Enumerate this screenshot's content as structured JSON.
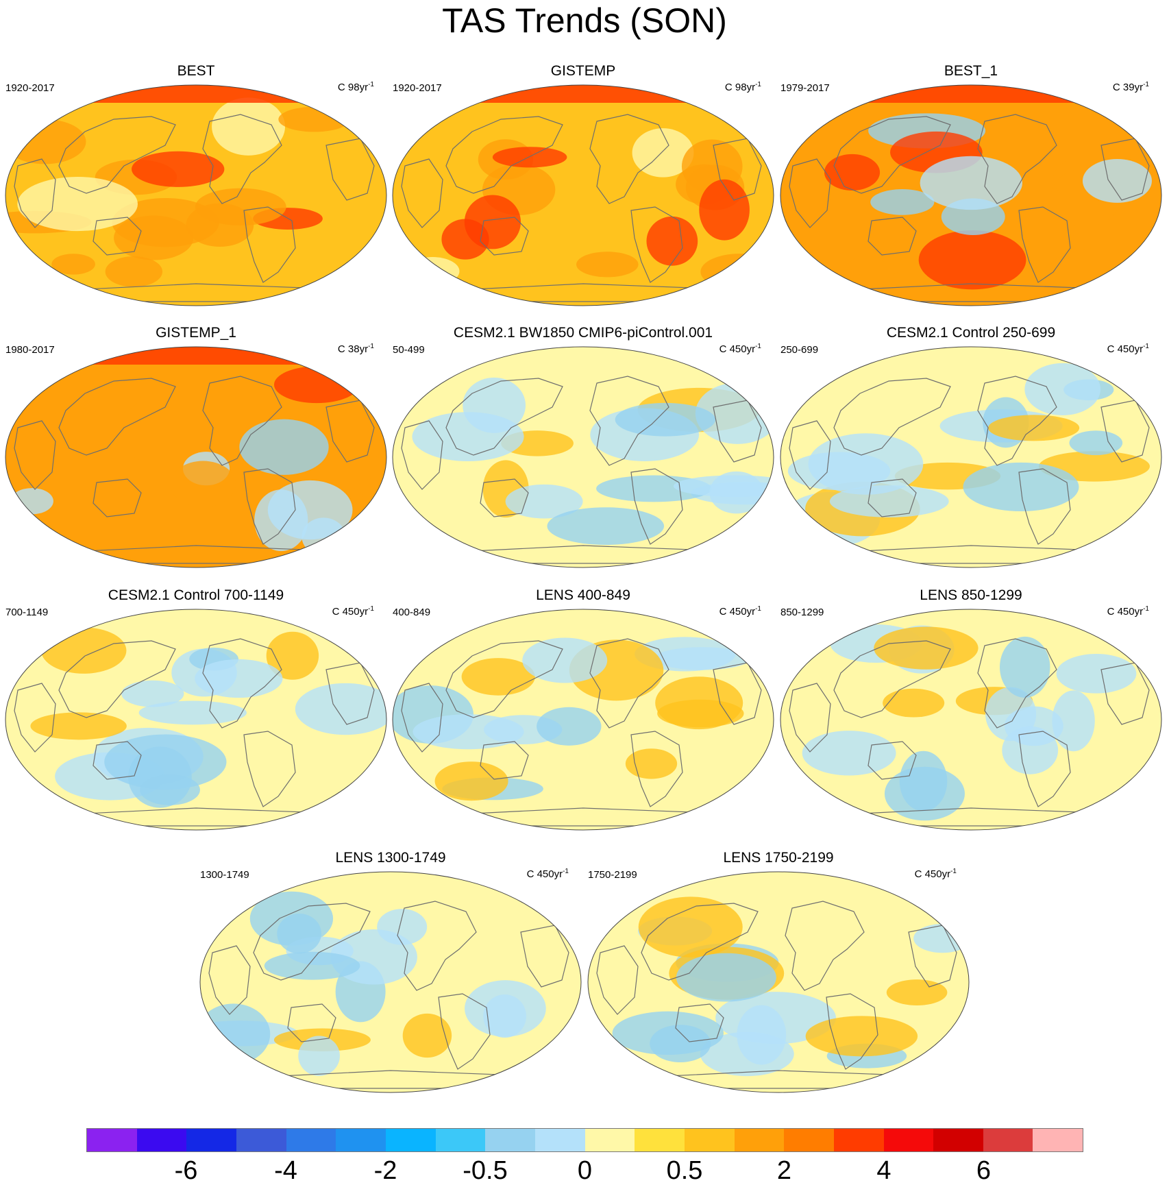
{
  "figure": {
    "title": "TAS Trends (SON)"
  },
  "panels": [
    {
      "name": "BEST",
      "period": "1920-2017",
      "units": "C 98yr",
      "units_sup": "-1",
      "pattern": "warm"
    },
    {
      "name": "GISTEMP",
      "period": "1920-2017",
      "units": "C 98yr",
      "units_sup": "-1",
      "pattern": "warm"
    },
    {
      "name": "BEST_1",
      "period": "1979-2017",
      "units": "C 39yr",
      "units_sup": "-1",
      "pattern": "strong-warm"
    },
    {
      "name": "GISTEMP_1",
      "period": "1980-2017",
      "units": "C 38yr",
      "units_sup": "-1",
      "pattern": "strong-warm"
    },
    {
      "name": "CESM2.1 BW1850 CMIP6-piControl.001",
      "period": "50-499",
      "units": "C 450yr",
      "units_sup": "-1",
      "pattern": "neutral"
    },
    {
      "name": "CESM2.1 Control 250-699",
      "period": "250-699",
      "units": "C 450yr",
      "units_sup": "-1",
      "pattern": "neutral"
    },
    {
      "name": "CESM2.1 Control 700-1149",
      "period": "700-1149",
      "units": "C 450yr",
      "units_sup": "-1",
      "pattern": "neutral"
    },
    {
      "name": "LENS 400-849",
      "period": "400-849",
      "units": "C 450yr",
      "units_sup": "-1",
      "pattern": "neutral"
    },
    {
      "name": "LENS 850-1299",
      "period": "850-1299",
      "units": "C 450yr",
      "units_sup": "-1",
      "pattern": "neutral"
    },
    {
      "name": "LENS 1300-1749",
      "period": "1300-1749",
      "units": "C 450yr",
      "units_sup": "-1",
      "pattern": "neutral"
    },
    {
      "name": "LENS 1750-2199",
      "period": "1750-2199",
      "units": "C 450yr",
      "units_sup": "-1",
      "pattern": "neutral"
    }
  ],
  "colorbar": {
    "colors": [
      "#8b22f0",
      "#3b0af0",
      "#1428e6",
      "#3c5ad8",
      "#2e7ae8",
      "#1f92f0",
      "#0ab4ff",
      "#3cc8f8",
      "#96d2f0",
      "#b4e1fa",
      "#fff8a8",
      "#ffe13c",
      "#ffc31e",
      "#ffa00a",
      "#ff7d00",
      "#ff3c00",
      "#f50a0a",
      "#d20000",
      "#dc3c3c",
      "#ffb4b4"
    ],
    "tick_labels": [
      "-6",
      "-4",
      "-2",
      "-0.5",
      "0",
      "0.5",
      "2",
      "4",
      "6"
    ]
  },
  "palette": {
    "land_outline": "#6e6e6e",
    "warm_base": "#ffc31e",
    "strong_warm": "#ffa00a",
    "hot": "#ff3c00",
    "neutral_base": "#fff8a8",
    "cool": "#b4e1fa",
    "cooler": "#96d2f0"
  }
}
